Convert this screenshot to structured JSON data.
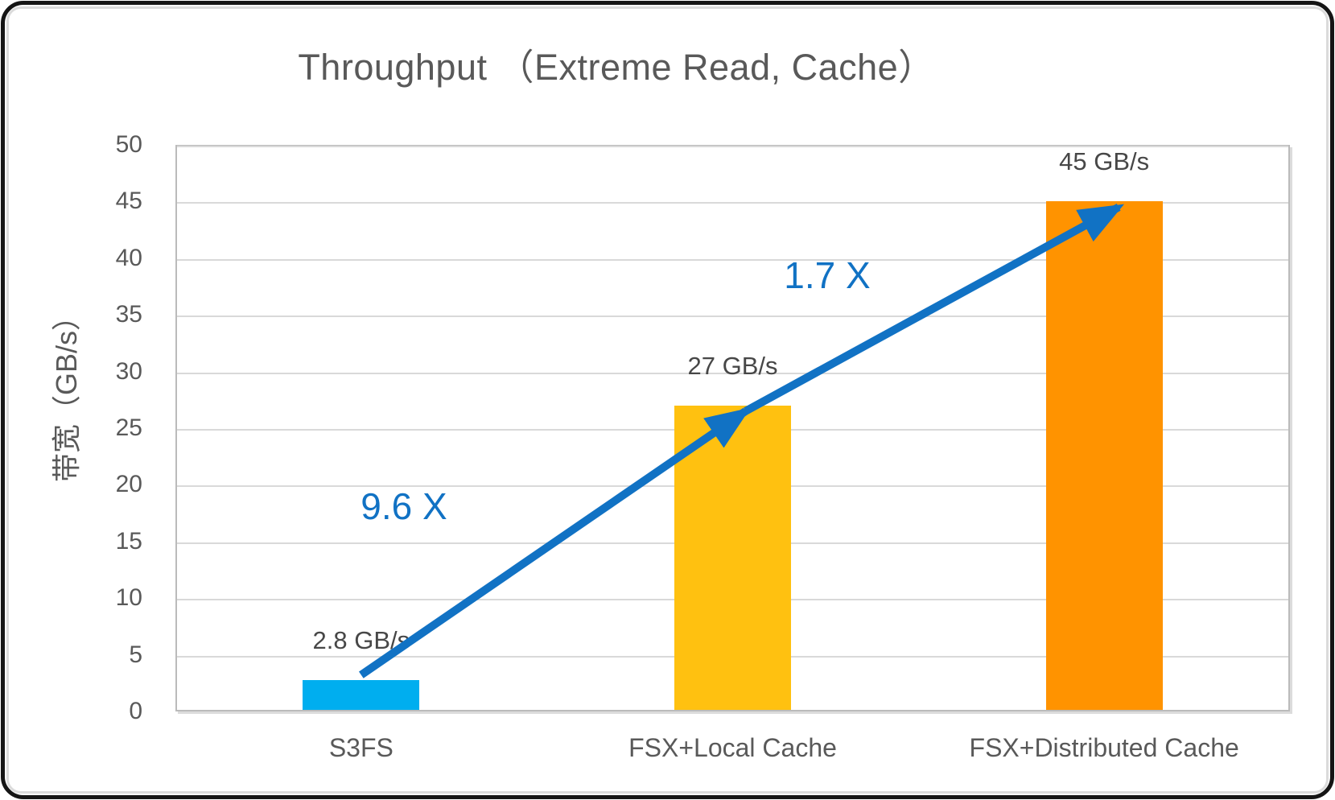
{
  "chart_data": {
    "type": "bar",
    "title": "Throughput （Extreme Read, Cache）",
    "ylabel": "带宽（GB/s）",
    "xlabel": "",
    "categories": [
      "S3FS",
      "FSX+Local Cache",
      "FSX+Distributed Cache"
    ],
    "values": [
      2.8,
      27,
      45
    ],
    "data_labels": [
      "2.8 GB/s",
      "27 GB/s",
      "45 GB/s"
    ],
    "bar_colors": [
      "#00AEEF",
      "#FFC110",
      "#FF9300"
    ],
    "ylim": [
      0,
      50
    ],
    "yticks": [
      0,
      5,
      10,
      15,
      20,
      25,
      30,
      35,
      40,
      45,
      50
    ],
    "grid": true,
    "legend": "none",
    "annotations": [
      {
        "text": "9.6 X",
        "from": 0,
        "to": 1
      },
      {
        "text": "1.7 X",
        "from": 1,
        "to": 2
      }
    ],
    "arrow_color": "#1172C4",
    "annotation_color": "#1172C4",
    "title_color": "#595959",
    "tick_color": "#595959",
    "data_label_color": "#474747"
  }
}
